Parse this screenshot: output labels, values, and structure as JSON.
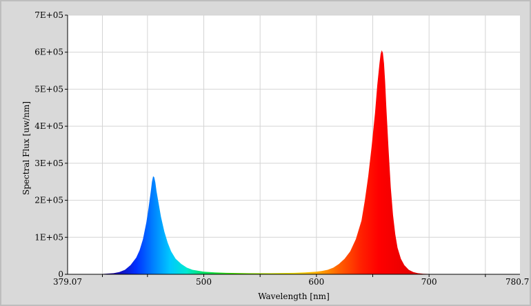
{
  "chart_data": {
    "type": "area",
    "title": "",
    "xlabel": "Wavelength [nm]",
    "ylabel": "Spectral Flux [uw/nm]",
    "xlim": [
      379.07,
      780.71
    ],
    "ylim": [
      0,
      700000
    ],
    "grid": true,
    "x_ticks": [
      379.07,
      500,
      600,
      700,
      780.71
    ],
    "x_tick_labels": [
      "379.07",
      "500",
      "600",
      "700",
      "780.71"
    ],
    "y_ticks": [
      0,
      100000,
      200000,
      300000,
      400000,
      500000,
      600000,
      700000
    ],
    "y_tick_labels": [
      "0",
      "1E+05",
      "2E+05",
      "3E+05",
      "4E+05",
      "5E+05",
      "6E+05",
      "7E+05"
    ],
    "fill": "spectrum",
    "series": [
      {
        "x": [
          379.07,
          400,
          410,
          420,
          425,
          430,
          435,
          440,
          443,
          446,
          449,
          451,
          453,
          454,
          455,
          456,
          457,
          458,
          460,
          462,
          465,
          468,
          471,
          475,
          480,
          485,
          490,
          500,
          510,
          520,
          530,
          540,
          550,
          560,
          570,
          580,
          590,
          600,
          605,
          610,
          615,
          620,
          625,
          630,
          635,
          640,
          643,
          646,
          649,
          652,
          654,
          656,
          657,
          658,
          659,
          660,
          661,
          662,
          664,
          666,
          668,
          670,
          672,
          675,
          678,
          682,
          686,
          690,
          695,
          700,
          720,
          750,
          780.71
        ],
        "y": [
          0,
          0,
          1000,
          3000,
          6000,
          12000,
          25000,
          45000,
          65000,
          95000,
          140000,
          180000,
          225000,
          250000,
          265000,
          262000,
          248000,
          225000,
          190000,
          155000,
          115000,
          85000,
          62000,
          42000,
          28000,
          18000,
          12000,
          7000,
          5000,
          4000,
          3500,
          3000,
          3000,
          3000,
          3500,
          4000,
          5000,
          7000,
          9000,
          12000,
          18000,
          28000,
          42000,
          62000,
          95000,
          145000,
          200000,
          265000,
          345000,
          435000,
          510000,
          570000,
          595000,
          605000,
          598000,
          570000,
          520000,
          455000,
          340000,
          235000,
          160000,
          108000,
          72000,
          42000,
          25000,
          12000,
          6000,
          3000,
          1500,
          1000,
          0,
          0,
          0
        ]
      }
    ]
  }
}
